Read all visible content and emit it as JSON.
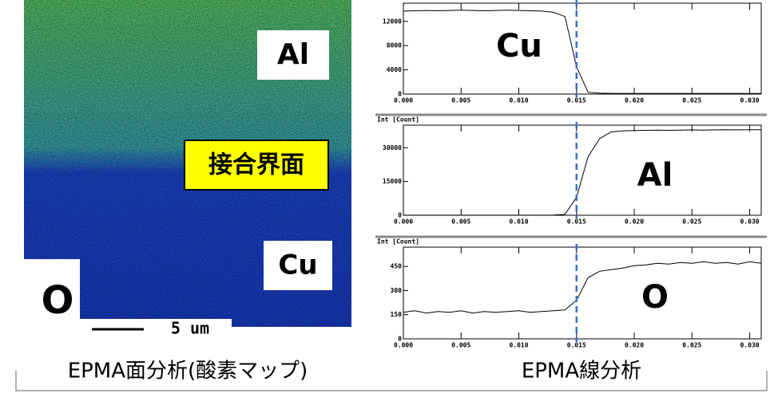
{
  "map": {
    "labels": [
      "Al",
      "接合界面",
      "Cu"
    ],
    "element": "O",
    "scale_bar": "5 um",
    "caption": "EPMA面分析(酸素マップ)"
  },
  "line_caption": "EPMA線分析",
  "chart_data": [
    {
      "type": "line",
      "annotation": "Cu",
      "color": "#000000",
      "marker_x": 0.015,
      "marker_color": "#3a6fd0",
      "x": [
        0,
        0.001,
        0.002,
        0.003,
        0.004,
        0.005,
        0.006,
        0.007,
        0.008,
        0.009,
        0.01,
        0.011,
        0.012,
        0.013,
        0.014,
        0.015,
        0.016,
        0.017,
        0.018,
        0.019,
        0.02,
        0.021,
        0.022,
        0.023,
        0.024,
        0.025,
        0.026,
        0.027,
        0.028,
        0.029,
        0.03,
        0.031
      ],
      "values": [
        13700,
        13750,
        13800,
        13750,
        13800,
        13850,
        13800,
        13750,
        13800,
        13850,
        13800,
        13750,
        13700,
        13500,
        12800,
        4500,
        300,
        150,
        120,
        110,
        100,
        100,
        100,
        100,
        100,
        100,
        100,
        100,
        100,
        100,
        100,
        100
      ],
      "xlim": [
        0,
        0.031
      ],
      "ylim": [
        0,
        15000
      ],
      "xticks": [
        {
          "value": 0,
          "label": "0.000"
        },
        {
          "value": 0.005,
          "label": "0.005"
        },
        {
          "value": 0.01,
          "label": "0.010"
        },
        {
          "value": 0.015,
          "label": "0.015"
        },
        {
          "value": 0.02,
          "label": "0.020"
        },
        {
          "value": 0.025,
          "label": "0.025"
        },
        {
          "value": 0.03,
          "label": "0.030"
        }
      ],
      "yticks": [
        0,
        4000,
        8000,
        12000
      ]
    },
    {
      "type": "line",
      "y_label": "Int [Count]",
      "annotation": "Al",
      "color": "#000000",
      "marker_x": 0.015,
      "marker_color": "#3a6fd0",
      "x": [
        0,
        0.001,
        0.002,
        0.003,
        0.004,
        0.005,
        0.006,
        0.007,
        0.008,
        0.009,
        0.01,
        0.011,
        0.012,
        0.013,
        0.014,
        0.015,
        0.016,
        0.017,
        0.018,
        0.019,
        0.02,
        0.021,
        0.022,
        0.023,
        0.024,
        0.025,
        0.026,
        0.027,
        0.028,
        0.029,
        0.03,
        0.031
      ],
      "values": [
        50,
        50,
        50,
        50,
        50,
        50,
        50,
        50,
        50,
        50,
        50,
        50,
        50,
        100,
        400,
        8000,
        26000,
        34000,
        37000,
        37500,
        37600,
        37700,
        37800,
        37700,
        37800,
        37900,
        37800,
        37900,
        38000,
        37900,
        38000,
        38000
      ],
      "xlim": [
        0,
        0.031
      ],
      "ylim": [
        0,
        40000
      ],
      "xticks": [
        {
          "value": 0,
          "label": "0.000"
        },
        {
          "value": 0.005,
          "label": "0.005"
        },
        {
          "value": 0.01,
          "label": "0.010"
        },
        {
          "value": 0.015,
          "label": "0.015"
        },
        {
          "value": 0.02,
          "label": "0.020"
        },
        {
          "value": 0.025,
          "label": "0.025"
        },
        {
          "value": 0.03,
          "label": "0.030"
        }
      ],
      "yticks": [
        0,
        15000,
        30000
      ]
    },
    {
      "type": "line",
      "y_label": "Int [Count]",
      "annotation": "O",
      "color": "#000000",
      "marker_x": 0.015,
      "marker_color": "#3a6fd0",
      "x": [
        0,
        0.001,
        0.002,
        0.003,
        0.004,
        0.005,
        0.006,
        0.007,
        0.008,
        0.009,
        0.01,
        0.011,
        0.012,
        0.013,
        0.014,
        0.015,
        0.016,
        0.017,
        0.018,
        0.019,
        0.02,
        0.021,
        0.022,
        0.023,
        0.024,
        0.025,
        0.026,
        0.027,
        0.028,
        0.029,
        0.03,
        0.031
      ],
      "values": [
        165,
        175,
        160,
        170,
        165,
        175,
        160,
        170,
        165,
        170,
        175,
        165,
        170,
        175,
        180,
        240,
        380,
        420,
        430,
        440,
        455,
        460,
        470,
        465,
        475,
        470,
        480,
        470,
        475,
        465,
        480,
        470
      ],
      "xlim": [
        0,
        0.031
      ],
      "ylim": [
        0,
        570
      ],
      "xticks": [
        {
          "value": 0,
          "label": "0.000"
        },
        {
          "value": 0.005,
          "label": "0.005"
        },
        {
          "value": 0.01,
          "label": "0.010"
        },
        {
          "value": 0.015,
          "label": "0.015"
        },
        {
          "value": 0.02,
          "label": "0.020"
        },
        {
          "value": 0.025,
          "label": "0.025"
        },
        {
          "value": 0.03,
          "label": "0.030"
        }
      ],
      "yticks": [
        0,
        150,
        300,
        450
      ]
    }
  ]
}
